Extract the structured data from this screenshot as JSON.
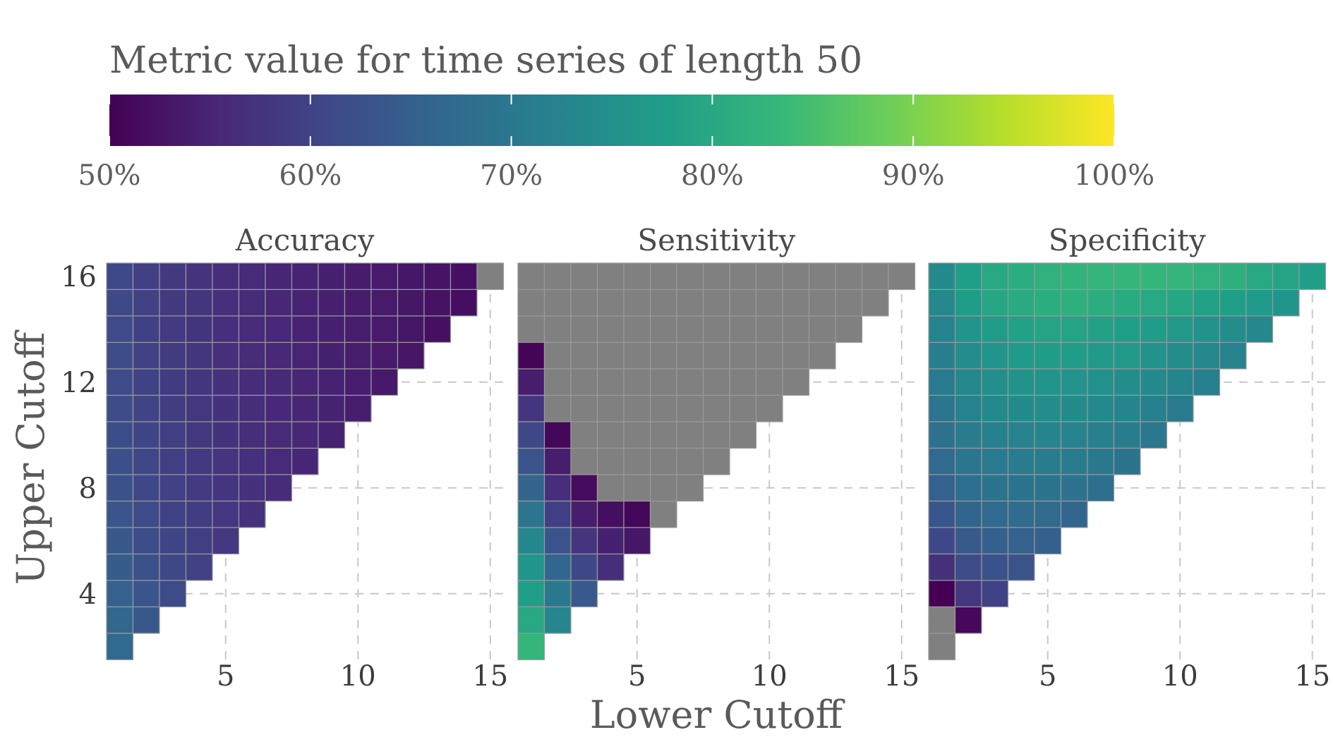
{
  "chart_data": {
    "type": "heatmap",
    "legend": {
      "title": "Metric value for time series of length 50",
      "ticks": [
        "50%",
        "60%",
        "70%",
        "80%",
        "90%",
        "100%"
      ],
      "tick_values": [
        0.5,
        0.6,
        0.7,
        0.8,
        0.9,
        1.0
      ],
      "range": [
        0.5,
        1.0
      ],
      "colormap": "viridis",
      "placement": "top"
    },
    "xlabel": "Lower Cutoff",
    "ylabel": "Upper Cutoff",
    "x_ticks": [
      5,
      10,
      15
    ],
    "y_ticks": [
      4,
      8,
      12,
      16
    ],
    "x_range": [
      1,
      15
    ],
    "y_range": [
      2,
      16
    ],
    "grid": true,
    "na_color": "#808080",
    "colors": {
      "na": "#808080",
      "text": "#5a5a5a",
      "grid": "#c8c8c8",
      "viridis_stops": [
        "#440154",
        "#482878",
        "#3e4989",
        "#31688e",
        "#26828e",
        "#1f9e89",
        "#35b779",
        "#6ece58",
        "#b5de2b",
        "#fde725"
      ]
    },
    "facets": [
      {
        "title": "Accuracy",
        "rows": [
          {
            "upper": 16,
            "values": [
              0.612,
              0.596,
              0.584,
              0.574,
              0.566,
              0.559,
              0.553,
              0.548,
              0.543,
              0.539,
              0.535,
              0.531,
              0.526,
              0.522,
              null
            ]
          },
          {
            "upper": 15,
            "values": [
              0.612,
              0.597,
              0.585,
              0.575,
              0.567,
              0.56,
              0.554,
              0.549,
              0.544,
              0.539,
              0.535,
              0.53,
              0.525,
              0.518
            ]
          },
          {
            "upper": 14,
            "values": [
              0.613,
              0.598,
              0.586,
              0.576,
              0.568,
              0.561,
              0.555,
              0.549,
              0.544,
              0.54,
              0.535,
              0.53,
              0.522
            ]
          },
          {
            "upper": 13,
            "values": [
              0.614,
              0.599,
              0.587,
              0.577,
              0.569,
              0.562,
              0.556,
              0.55,
              0.545,
              0.54,
              0.535,
              0.528
            ]
          },
          {
            "upper": 12,
            "values": [
              0.616,
              0.6,
              0.588,
              0.578,
              0.57,
              0.563,
              0.557,
              0.551,
              0.546,
              0.541,
              0.534
            ]
          },
          {
            "upper": 11,
            "values": [
              0.618,
              0.602,
              0.59,
              0.58,
              0.572,
              0.565,
              0.558,
              0.552,
              0.547,
              0.54
            ]
          },
          {
            "upper": 10,
            "values": [
              0.62,
              0.604,
              0.592,
              0.582,
              0.573,
              0.566,
              0.56,
              0.554,
              0.546
            ]
          },
          {
            "upper": 9,
            "values": [
              0.623,
              0.607,
              0.594,
              0.584,
              0.575,
              0.568,
              0.561,
              0.553
            ]
          },
          {
            "upper": 8,
            "values": [
              0.627,
              0.61,
              0.597,
              0.586,
              0.578,
              0.57,
              0.562
            ]
          },
          {
            "upper": 7,
            "values": [
              0.632,
              0.614,
              0.6,
              0.59,
              0.58,
              0.571
            ]
          },
          {
            "upper": 6,
            "values": [
              0.638,
              0.619,
              0.605,
              0.593,
              0.582
            ]
          },
          {
            "upper": 5,
            "values": [
              0.645,
              0.625,
              0.61,
              0.597
            ]
          },
          {
            "upper": 4,
            "values": [
              0.654,
              0.632,
              0.614
            ]
          },
          {
            "upper": 3,
            "values": [
              0.664,
              0.638
            ]
          },
          {
            "upper": 2,
            "values": [
              0.672
            ]
          }
        ]
      },
      {
        "title": "Sensitivity",
        "rows": [
          {
            "upper": 16,
            "values": [
              null,
              null,
              null,
              null,
              null,
              null,
              null,
              null,
              null,
              null,
              null,
              null,
              null,
              null,
              null
            ]
          },
          {
            "upper": 15,
            "values": [
              null,
              null,
              null,
              null,
              null,
              null,
              null,
              null,
              null,
              null,
              null,
              null,
              null,
              null
            ]
          },
          {
            "upper": 14,
            "values": [
              null,
              null,
              null,
              null,
              null,
              null,
              null,
              null,
              null,
              null,
              null,
              null,
              null
            ]
          },
          {
            "upper": 13,
            "values": [
              0.505,
              null,
              null,
              null,
              null,
              null,
              null,
              null,
              null,
              null,
              null,
              null
            ]
          },
          {
            "upper": 12,
            "values": [
              0.54,
              null,
              null,
              null,
              null,
              null,
              null,
              null,
              null,
              null,
              null
            ]
          },
          {
            "upper": 11,
            "values": [
              0.575,
              null,
              null,
              null,
              null,
              null,
              null,
              null,
              null,
              null
            ]
          },
          {
            "upper": 10,
            "values": [
              0.61,
              0.508,
              null,
              null,
              null,
              null,
              null,
              null,
              null
            ]
          },
          {
            "upper": 9,
            "values": [
              0.63,
              0.54,
              null,
              null,
              null,
              null,
              null,
              null
            ]
          },
          {
            "upper": 8,
            "values": [
              0.66,
              0.565,
              0.515,
              null,
              null,
              null,
              null
            ]
          },
          {
            "upper": 7,
            "values": [
              0.695,
              0.595,
              0.54,
              0.52,
              0.508,
              null
            ]
          },
          {
            "upper": 6,
            "values": [
              0.73,
              0.63,
              0.575,
              0.545,
              0.53
            ]
          },
          {
            "upper": 5,
            "values": [
              0.76,
              0.665,
              0.61,
              0.565
            ]
          },
          {
            "upper": 4,
            "values": [
              0.78,
              0.7,
              0.64
            ]
          },
          {
            "upper": 3,
            "values": [
              0.8,
              0.73
            ]
          },
          {
            "upper": 2,
            "values": [
              0.83
            ]
          }
        ]
      },
      {
        "title": "Specificity",
        "rows": [
          {
            "upper": 16,
            "values": [
              0.74,
              0.78,
              0.8,
              0.81,
              0.82,
              0.825,
              0.828,
              0.83,
              0.83,
              0.828,
              0.82,
              0.815,
              0.8,
              0.79,
              0.78
            ]
          },
          {
            "upper": 15,
            "values": [
              0.735,
              0.775,
              0.795,
              0.805,
              0.81,
              0.815,
              0.81,
              0.805,
              0.8,
              0.795,
              0.785,
              0.78,
              0.77,
              0.76
            ]
          },
          {
            "upper": 14,
            "values": [
              0.725,
              0.76,
              0.775,
              0.785,
              0.79,
              0.79,
              0.785,
              0.78,
              0.775,
              0.765,
              0.755,
              0.745,
              0.735
            ]
          },
          {
            "upper": 13,
            "values": [
              0.715,
              0.745,
              0.76,
              0.77,
              0.775,
              0.775,
              0.77,
              0.765,
              0.755,
              0.745,
              0.735,
              0.725
            ]
          },
          {
            "upper": 12,
            "values": [
              0.705,
              0.735,
              0.748,
              0.755,
              0.758,
              0.757,
              0.752,
              0.745,
              0.738,
              0.728,
              0.718
            ]
          },
          {
            "upper": 11,
            "values": [
              0.695,
              0.722,
              0.735,
              0.74,
              0.742,
              0.74,
              0.735,
              0.727,
              0.718,
              0.705
            ]
          },
          {
            "upper": 10,
            "values": [
              0.685,
              0.71,
              0.72,
              0.725,
              0.727,
              0.725,
              0.718,
              0.71,
              0.7
            ]
          },
          {
            "upper": 9,
            "values": [
              0.67,
              0.695,
              0.705,
              0.71,
              0.71,
              0.707,
              0.7,
              0.69
            ]
          },
          {
            "upper": 8,
            "values": [
              0.655,
              0.68,
              0.69,
              0.693,
              0.693,
              0.688,
              0.68
            ]
          },
          {
            "upper": 7,
            "values": [
              0.635,
              0.662,
              0.672,
              0.675,
              0.673,
              0.665
            ]
          },
          {
            "upper": 6,
            "values": [
              0.61,
              0.64,
              0.652,
              0.655,
              0.65
            ]
          },
          {
            "upper": 5,
            "values": [
              0.57,
              0.615,
              0.628,
              0.63
            ]
          },
          {
            "upper": 4,
            "values": [
              0.5,
              0.58,
              0.6
            ]
          },
          {
            "upper": 3,
            "values": [
              null,
              0.51
            ]
          },
          {
            "upper": 2,
            "values": [
              null
            ]
          }
        ]
      }
    ]
  }
}
